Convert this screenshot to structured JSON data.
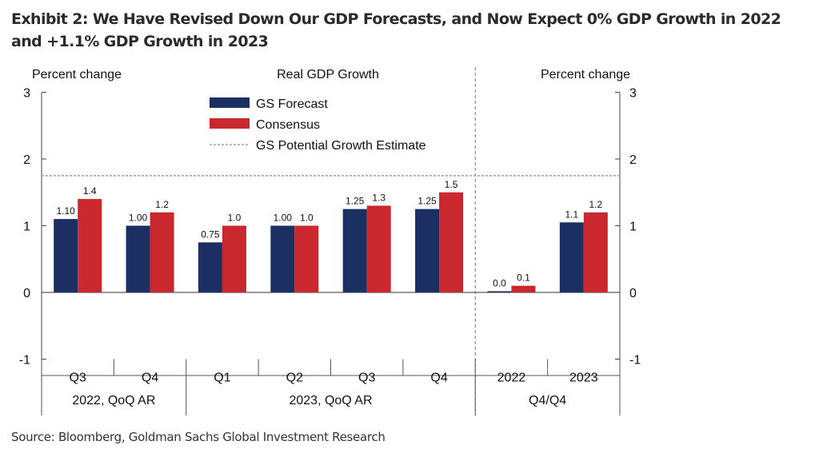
{
  "title": "Exhibit 2: We Have Revised Down Our GDP Forecasts, and Now Expect 0% GDP Growth in 2022 and +1.1% GDP Growth in 2023",
  "source": "Source: Bloomberg, Goldman Sachs Global Investment Research",
  "colors": {
    "gs_forecast": "#1b2f63",
    "consensus": "#c8282e",
    "potential": "#8fa3c8"
  },
  "chart_data": {
    "type": "bar",
    "title": "Real GDP Growth",
    "ylabel_left": "Percent change",
    "ylabel_right": "Percent change",
    "ylim": [
      -1,
      3
    ],
    "yticks": [
      -1,
      0,
      1,
      2,
      3
    ],
    "categories": [
      "Q3",
      "Q4",
      "Q1",
      "Q2",
      "Q3",
      "Q4",
      "2022",
      "2023"
    ],
    "groups": [
      {
        "label": "2022, QoQ AR",
        "span": 2
      },
      {
        "label": "2023, QoQ AR",
        "span": 4
      },
      {
        "label": "Q4/Q4",
        "span": 2
      }
    ],
    "series": [
      {
        "name": "GS Forecast",
        "values": [
          1.1,
          1.0,
          0.75,
          1.0,
          1.25,
          1.25,
          0.0,
          1.05
        ],
        "labels": [
          "1.10",
          "1.00",
          "0.75",
          "1.00",
          "1.25",
          "1.25",
          "0.0",
          "1.1"
        ]
      },
      {
        "name": "Consensus",
        "values": [
          1.4,
          1.2,
          1.0,
          1.0,
          1.3,
          1.5,
          0.1,
          1.2
        ],
        "labels": [
          "1.4",
          "1.2",
          "1.0",
          "1.0",
          "1.3",
          "1.5",
          "0.1",
          "1.2"
        ]
      }
    ],
    "reference_line": {
      "name": "GS Potential Growth Estimate",
      "value": 1.75
    },
    "divider_after_category": 6,
    "legend_position": "top-center",
    "grid": false
  }
}
